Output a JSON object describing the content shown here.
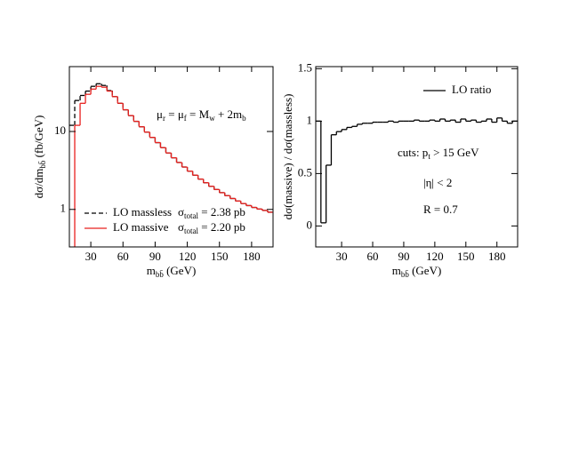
{
  "chart_data": [
    {
      "type": "histogram",
      "scale": "log",
      "xlabel": [
        "m",
        "bb̄",
        " (GeV)"
      ],
      "ylabel": [
        "dσ/dm",
        "bb̄",
        " (fb/GeV)"
      ],
      "bins": [
        10,
        15,
        20,
        25,
        30,
        35,
        40,
        45,
        50,
        55,
        60,
        65,
        70,
        75,
        80,
        85,
        90,
        95,
        100,
        105,
        110,
        115,
        120,
        125,
        130,
        135,
        140,
        145,
        150,
        155,
        160,
        165,
        170,
        175,
        180,
        185,
        190,
        195,
        200
      ],
      "series": [
        {
          "name": "LO massless",
          "color": "#000000",
          "linestyle": "dashed",
          "values": [
            12,
            25,
            29,
            33,
            38,
            41,
            39,
            33.5,
            28,
            23,
            19,
            16,
            13.5,
            11.5,
            9.8,
            8.4,
            7.2,
            6.2,
            5.3,
            4.6,
            4.0,
            3.5,
            3.1,
            2.75,
            2.45,
            2.2,
            1.98,
            1.8,
            1.64,
            1.5,
            1.38,
            1.28,
            1.19,
            1.12,
            1.06,
            1.01,
            0.97,
            0.92
          ]
        },
        {
          "name": "LO massive",
          "color": "#e8211f",
          "linestyle": "solid",
          "values": [
            0.3,
            12,
            23,
            30,
            35,
            38,
            37,
            33,
            28,
            23,
            19,
            16,
            13.5,
            11.5,
            9.8,
            8.4,
            7.2,
            6.2,
            5.3,
            4.6,
            4.0,
            3.5,
            3.1,
            2.75,
            2.45,
            2.2,
            1.98,
            1.8,
            1.64,
            1.5,
            1.38,
            1.28,
            1.19,
            1.12,
            1.06,
            1.01,
            0.97,
            0.92
          ]
        }
      ],
      "xlim": [
        10,
        200
      ],
      "xticks": [
        30,
        60,
        90,
        120,
        150,
        180
      ],
      "ylim": [
        0.33,
        68
      ],
      "yticks": [
        1,
        10
      ],
      "legend": "lower left",
      "annotations": [
        [
          "μ",
          "r",
          " = μ",
          "f",
          " = M",
          "w",
          " + 2m",
          "b"
        ],
        [
          "σ",
          "total",
          " = 2.38 pb"
        ],
        [
          "σ",
          "total",
          " = 2.20 pb"
        ]
      ]
    },
    {
      "type": "histogram",
      "scale": "linear",
      "xlabel": [
        "m",
        "bb̄",
        " (GeV)"
      ],
      "ylabel": [
        "dσ(massive) / dσ(massless)"
      ],
      "bins": [
        5,
        10,
        15,
        20,
        25,
        30,
        35,
        40,
        45,
        50,
        55,
        60,
        65,
        70,
        75,
        80,
        85,
        90,
        95,
        100,
        105,
        110,
        115,
        120,
        125,
        130,
        135,
        140,
        145,
        150,
        155,
        160,
        165,
        170,
        175,
        180,
        185,
        190,
        195,
        200
      ],
      "series": [
        {
          "name": "LO ratio",
          "color": "#000000",
          "linestyle": "solid",
          "values": [
            1.0,
            0.03,
            0.58,
            0.87,
            0.9,
            0.92,
            0.94,
            0.95,
            0.97,
            0.98,
            0.98,
            0.99,
            0.99,
            0.99,
            1.0,
            0.99,
            1.0,
            1.0,
            1.0,
            1.01,
            1.0,
            1.0,
            1.01,
            1.0,
            1.02,
            1.0,
            1.01,
            0.99,
            1.02,
            1.0,
            1.01,
            0.99,
            1.0,
            1.02,
            0.99,
            1.03,
            1.0,
            0.98,
            1.0
          ]
        }
      ],
      "xlim": [
        5,
        200
      ],
      "xticks": [
        30,
        60,
        90,
        120,
        150,
        180
      ],
      "ylim": [
        -0.2,
        1.52
      ],
      "yticks": [
        0,
        0.5,
        1,
        1.5
      ],
      "legend": "upper right",
      "annotations": [
        [
          "cuts: p",
          "t",
          " > 15 GeV"
        ],
        [
          "|η| < 2"
        ],
        [
          "R = 0.7"
        ]
      ]
    }
  ]
}
